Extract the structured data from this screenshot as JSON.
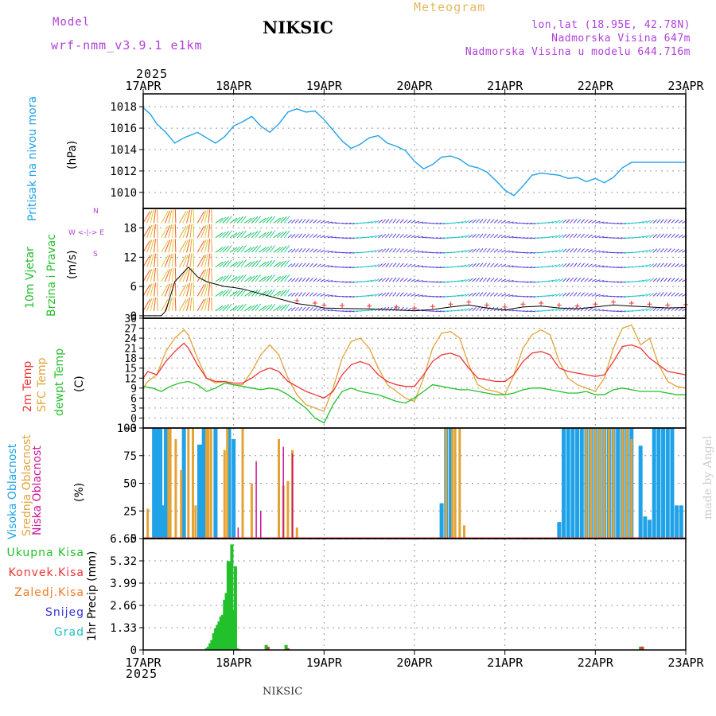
{
  "header": {
    "model_label": "Model",
    "model_name": "wrf-nmm_v3.9.1 e1km",
    "title": "NIKSIC",
    "meteogram_label": "Meteogram",
    "coords": "lon,lat (18.95E, 42.78N)",
    "altitude": "Nadmorska Visina 647m",
    "model_altitude": "Nadmorska Visina u modelu 644.716m",
    "watermark": "made by Angel",
    "footer_station": "NIKSIC"
  },
  "colors": {
    "pressure": "#1fa2e8",
    "wind_green": "#22c02a",
    "temp2m": "#ee3333",
    "sfc_temp": "#e3a336",
    "dewpoint": "#22c02a",
    "high_cloud": "#1fa2e8",
    "mid_cloud": "#e3a336",
    "low_cloud": "#cc1199",
    "total_precip": "#22c02a",
    "conv_precip": "#ee3333",
    "freezing_precip": "#f07a26",
    "snow": "#3333dd",
    "hail": "#22c0c0",
    "purple": "#b040d8",
    "orange_title": "#e8b860"
  },
  "axes": {
    "year_top": "2025",
    "year_bottom": "2025",
    "date_labels": [
      "17APR",
      "18APR",
      "19APR",
      "20APR",
      "21APR",
      "22APR",
      "23APR"
    ]
  },
  "panel_labels": {
    "pressure": {
      "name": "Pritisak na nivou mora",
      "unit": "(hPa)"
    },
    "wind": {
      "line1": "10m Vjetar",
      "line2": "Brzina i Pravac",
      "unit": "(m/s)",
      "compass": "W <-|-> E",
      "compass_n": "N",
      "compass_s": "S"
    },
    "temp": {
      "t2m": "2m Temp",
      "sfc": "SFC Temp",
      "dew": "dewpt Temp",
      "unit": "(C)"
    },
    "cloud": {
      "high": "Visoka Oblacnost",
      "mid": "Srednja Oblacnost",
      "low": "Niska Oblacnost",
      "unit": "(%)"
    },
    "precip": {
      "total": "Ukupna Kisa",
      "conv": "Konvek.Kisa",
      "freezing": "Zaledj.Kisa",
      "snow": "Snijeg",
      "hail": "Grad",
      "unit": "1hr Precip (mm)"
    }
  },
  "chart_data": [
    {
      "type": "line",
      "panel": "pressure",
      "ylabel": "(hPa)",
      "ylim": [
        1008.5,
        1019.2
      ],
      "yticks": [
        1010,
        1012,
        1014,
        1016,
        1018
      ],
      "xlim_days": [
        0,
        6
      ],
      "grid": true,
      "series": [
        {
          "name": "Pritisak na nivou mora",
          "x": [
            0,
            0.08,
            0.15,
            0.25,
            0.35,
            0.45,
            0.6,
            0.7,
            0.8,
            0.9,
            1.0,
            1.1,
            1.2,
            1.3,
            1.4,
            1.5,
            1.6,
            1.7,
            1.8,
            1.9,
            2.0,
            2.1,
            2.2,
            2.3,
            2.4,
            2.5,
            2.6,
            2.7,
            2.8,
            2.9,
            3.0,
            3.1,
            3.2,
            3.3,
            3.4,
            3.5,
            3.6,
            3.7,
            3.8,
            3.9,
            4.0,
            4.1,
            4.2,
            4.3,
            4.4,
            4.5,
            4.6,
            4.7,
            4.8,
            4.9,
            5.0,
            5.1,
            5.2,
            5.3,
            5.4,
            5.5,
            5.6,
            5.7,
            5.8,
            5.9,
            6.0
          ],
          "values": [
            1017.9,
            1017.3,
            1016.4,
            1015.6,
            1014.6,
            1015.1,
            1015.6,
            1015.1,
            1014.6,
            1015.2,
            1016.2,
            1016.6,
            1017.1,
            1016.2,
            1015.6,
            1016.4,
            1017.5,
            1017.8,
            1017.5,
            1017.6,
            1016.8,
            1015.8,
            1014.8,
            1014.1,
            1014.5,
            1015.1,
            1015.3,
            1014.6,
            1014.3,
            1013.9,
            1012.9,
            1012.2,
            1012.6,
            1013.3,
            1013.4,
            1013.1,
            1012.5,
            1012.3,
            1011.9,
            1011.1,
            1010.2,
            1009.7,
            1010.6,
            1011.6,
            1011.8,
            1011.7,
            1011.6,
            1011.3,
            1011.4,
            1011.0,
            1011.3,
            1010.9,
            1011.4,
            1012.3,
            1012.8,
            1012.8,
            1012.8,
            1012.8,
            1012.8,
            1012.8,
            1012.8
          ]
        }
      ]
    },
    {
      "type": "line",
      "panel": "wind",
      "ylabel": "(m/s)",
      "ylim": [
        -0.5,
        22
      ],
      "yticks": [
        0,
        6,
        12,
        18
      ],
      "grid": true,
      "series": [
        {
          "name": "10m Vjetar Brzina",
          "x": [
            0,
            0.2,
            0.25,
            0.3,
            0.35,
            0.4,
            0.45,
            0.5,
            0.55,
            0.6,
            0.7,
            0.8,
            0.9,
            1.0,
            1.1,
            1.2,
            1.3,
            1.5,
            1.7,
            1.9,
            2.0,
            2.2,
            2.5,
            2.8,
            3.0,
            3.2,
            3.4,
            3.6,
            3.8,
            4.0,
            4.2,
            4.4,
            4.6,
            4.8,
            5.0,
            5.2,
            5.4,
            5.6,
            5.8,
            6.0
          ],
          "values": [
            0,
            0,
            1,
            4,
            7,
            8,
            9,
            10,
            9,
            8,
            7,
            6.5,
            6,
            5.8,
            5.5,
            5,
            4.5,
            3.5,
            2.5,
            2.0,
            1.6,
            1.5,
            1.4,
            1.2,
            1.0,
            1.3,
            1.8,
            2.2,
            1.6,
            1.2,
            1.8,
            2.0,
            1.6,
            1.4,
            1.8,
            2.2,
            2.0,
            1.8,
            1.6,
            1.7
          ]
        }
      ]
    },
    {
      "type": "line",
      "panel": "temperature",
      "ylabel": "(C)",
      "ylim": [
        -3,
        30
      ],
      "yticks": [
        -3,
        0,
        3,
        6,
        9,
        12,
        15,
        18,
        21,
        24,
        27,
        30
      ],
      "grid": true,
      "series": [
        {
          "name": "2m Temp",
          "x": [
            0,
            0.05,
            0.15,
            0.25,
            0.35,
            0.45,
            0.5,
            0.6,
            0.7,
            0.8,
            0.9,
            1.0,
            1.1,
            1.2,
            1.3,
            1.4,
            1.5,
            1.6,
            1.7,
            1.8,
            1.9,
            2.0,
            2.1,
            2.2,
            2.3,
            2.4,
            2.5,
            2.6,
            2.7,
            2.8,
            2.9,
            3.0,
            3.1,
            3.2,
            3.3,
            3.4,
            3.5,
            3.6,
            3.7,
            3.8,
            3.9,
            4.0,
            4.1,
            4.2,
            4.3,
            4.4,
            4.5,
            4.6,
            4.7,
            4.8,
            4.9,
            5.0,
            5.1,
            5.2,
            5.3,
            5.4,
            5.5,
            5.6,
            5.7,
            5.8,
            5.9,
            6.0
          ],
          "values": [
            12,
            14,
            13,
            17,
            20,
            22.5,
            21,
            16,
            12,
            11,
            11,
            10.5,
            10.5,
            12,
            14,
            15,
            14,
            11,
            9.5,
            8,
            7,
            6,
            8,
            13,
            16,
            17,
            16,
            13,
            11,
            10,
            9.5,
            9.5,
            13,
            17,
            19,
            19.5,
            18.5,
            15,
            12,
            11.5,
            11,
            11,
            13,
            17,
            19.5,
            20,
            19,
            15,
            14,
            13.5,
            13,
            12.5,
            13,
            17,
            21.5,
            22,
            21,
            18,
            16,
            14,
            13.5,
            13
          ]
        },
        {
          "name": "SFC Temp",
          "x": [
            0,
            0.05,
            0.15,
            0.25,
            0.35,
            0.45,
            0.5,
            0.6,
            0.7,
            0.8,
            0.9,
            1.0,
            1.1,
            1.2,
            1.3,
            1.4,
            1.5,
            1.6,
            1.7,
            1.8,
            1.9,
            2.0,
            2.1,
            2.2,
            2.3,
            2.4,
            2.5,
            2.6,
            2.7,
            2.8,
            2.9,
            3.0,
            3.1,
            3.2,
            3.3,
            3.4,
            3.5,
            3.6,
            3.7,
            3.8,
            3.9,
            4.0,
            4.1,
            4.2,
            4.3,
            4.4,
            4.5,
            4.6,
            4.7,
            4.8,
            4.9,
            5.0,
            5.1,
            5.2,
            5.3,
            5.4,
            5.5,
            5.6,
            5.7,
            5.8,
            5.9,
            6.0
          ],
          "values": [
            9,
            11,
            13,
            20,
            24,
            26.5,
            25,
            18,
            12,
            10.5,
            11,
            10,
            10,
            14,
            19,
            22,
            19,
            12,
            7,
            4,
            3,
            2,
            9,
            18,
            23,
            24,
            21,
            15,
            10,
            8,
            6,
            5,
            12,
            21,
            25.5,
            26,
            24,
            16,
            10,
            8.5,
            8,
            7,
            13,
            21,
            25,
            26.5,
            25,
            17,
            12,
            10,
            9,
            8,
            12,
            21,
            27,
            28,
            22,
            24,
            16,
            11,
            9.5,
            9
          ]
        },
        {
          "name": "dewpt Temp",
          "x": [
            0,
            0.1,
            0.2,
            0.3,
            0.4,
            0.5,
            0.6,
            0.7,
            0.8,
            0.9,
            1.0,
            1.1,
            1.2,
            1.3,
            1.4,
            1.5,
            1.6,
            1.7,
            1.8,
            1.9,
            2.0,
            2.1,
            2.2,
            2.3,
            2.4,
            2.5,
            2.6,
            2.7,
            2.8,
            2.9,
            3.0,
            3.1,
            3.2,
            3.3,
            3.4,
            3.5,
            3.6,
            3.7,
            3.8,
            3.9,
            4.0,
            4.1,
            4.2,
            4.3,
            4.4,
            4.5,
            4.6,
            4.7,
            4.8,
            4.9,
            5.0,
            5.1,
            5.2,
            5.3,
            5.4,
            5.5,
            5.6,
            5.7,
            5.8,
            5.9,
            6.0
          ],
          "values": [
            9.5,
            9,
            8,
            9.5,
            10.5,
            11,
            10,
            8,
            9,
            10.5,
            10,
            9.5,
            9,
            8.5,
            9,
            8.5,
            7,
            5,
            3,
            0,
            -1.5,
            4,
            8,
            9,
            8,
            7.5,
            7,
            6,
            5,
            4.5,
            6,
            8,
            10,
            9.5,
            9,
            8.5,
            8.5,
            8,
            7.5,
            7,
            7,
            7.5,
            8.5,
            9,
            9,
            8.5,
            8,
            7.5,
            7.5,
            8,
            7,
            7,
            8.5,
            9,
            8.5,
            8,
            8,
            8,
            7.5,
            7,
            7
          ]
        }
      ]
    },
    {
      "type": "bar",
      "panel": "cloud",
      "ylabel": "(%)",
      "ylim": [
        0,
        100
      ],
      "yticks": [
        0,
        25,
        50,
        75,
        100
      ],
      "grid": true,
      "series": [
        {
          "name": "Visoka Oblacnost",
          "x": [
            0.12,
            0.15,
            0.17,
            0.19,
            0.22,
            0.25,
            0.45,
            0.62,
            0.65,
            0.67,
            0.8,
            0.95,
            1.0,
            3.3,
            3.35,
            3.4,
            4.6,
            4.65,
            4.7,
            4.75,
            4.8,
            4.85,
            4.9,
            4.95,
            5.0,
            5.05,
            5.1,
            5.15,
            5.2,
            5.25,
            5.3,
            5.35,
            5.4,
            5.5,
            5.55,
            5.6,
            5.65,
            5.7,
            5.75,
            5.8,
            5.85,
            5.9,
            5.95
          ],
          "values": [
            100,
            100,
            100,
            100,
            30,
            100,
            100,
            85,
            85,
            100,
            100,
            100,
            90,
            32,
            100,
            100,
            15,
            100,
            100,
            100,
            100,
            100,
            100,
            100,
            100,
            100,
            100,
            100,
            100,
            100,
            100,
            100,
            100,
            84,
            20,
            17,
            100,
            100,
            100,
            100,
            100,
            30,
            30
          ]
        },
        {
          "name": "Srednja Oblacnost",
          "x": [
            0.05,
            0.28,
            0.3,
            0.36,
            0.42,
            0.5,
            0.55,
            0.58,
            0.7,
            0.72,
            0.75,
            0.9,
            0.93,
            1.1,
            1.2,
            1.5,
            1.55,
            1.6,
            1.65,
            1.7,
            3.35,
            3.42,
            3.45,
            3.5,
            3.55,
            4.9,
            4.95,
            5.0,
            5.05,
            5.1,
            5.15,
            5.2,
            5.3,
            5.35,
            5.4
          ],
          "values": [
            27,
            100,
            100,
            90,
            62,
            100,
            100,
            30,
            100,
            100,
            100,
            80,
            100,
            100,
            50,
            90,
            48,
            52,
            80,
            10,
            100,
            100,
            100,
            100,
            12,
            100,
            100,
            100,
            100,
            100,
            100,
            100,
            100,
            100,
            90
          ]
        },
        {
          "name": "Niska Oblacnost",
          "x": [
            1.05,
            1.25,
            1.3,
            1.55,
            1.65
          ],
          "values": [
            10,
            70,
            25,
            83,
            77
          ]
        }
      ]
    },
    {
      "type": "bar",
      "panel": "precip",
      "ylabel": "1hr Precip (mm)",
      "ylim": [
        0,
        6.65
      ],
      "yticks": [
        0,
        1.33,
        2.66,
        3.99,
        5.32,
        6.65
      ],
      "grid": true,
      "series": [
        {
          "name": "Ukupna Kisa",
          "x": [
            0.7,
            0.72,
            0.74,
            0.76,
            0.78,
            0.8,
            0.82,
            0.84,
            0.86,
            0.88,
            0.9,
            0.92,
            0.94,
            0.96,
            0.98,
            1.0,
            1.02,
            1.04,
            1.06,
            1.36,
            1.38,
            1.58,
            1.6,
            5.5
          ],
          "values": [
            0.1,
            0.2,
            0.4,
            0.6,
            1.0,
            1.3,
            1.5,
            1.7,
            2.0,
            2.1,
            3.0,
            3.4,
            5.3,
            5.3,
            6.3,
            2.4,
            5.0,
            0.1,
            0.05,
            0.3,
            0.2,
            0.3,
            0.1,
            0.2
          ]
        },
        {
          "name": "Konvek.Kisa",
          "x": [
            1.38,
            1.6,
            5.52
          ],
          "values": [
            0.15,
            0.1,
            0.2
          ]
        }
      ]
    }
  ]
}
